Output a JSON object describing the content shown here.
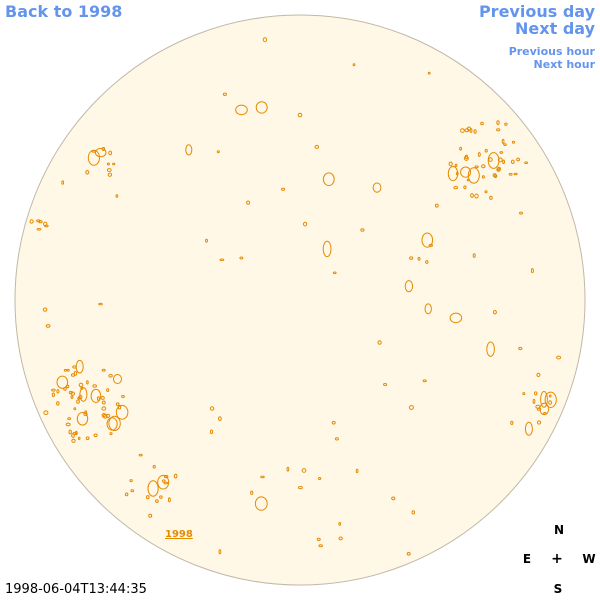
{
  "nav": {
    "back": "Back to 1998",
    "previous_day": "Previous day",
    "next_day": "Next day",
    "previous_hour": "Previous hour",
    "next_hour": "Next hour"
  },
  "disk": {
    "label": "1998",
    "timestamp": "1998-06-04T13:44:35",
    "colors": {
      "disk_fill": "#fff8e7",
      "disk_edge": "#c0b8a8",
      "contour": "#e68a00",
      "link": "#6495ed"
    }
  },
  "compass": {
    "n": "N",
    "e": "E",
    "center": "+",
    "w": "W",
    "s": "S"
  }
}
